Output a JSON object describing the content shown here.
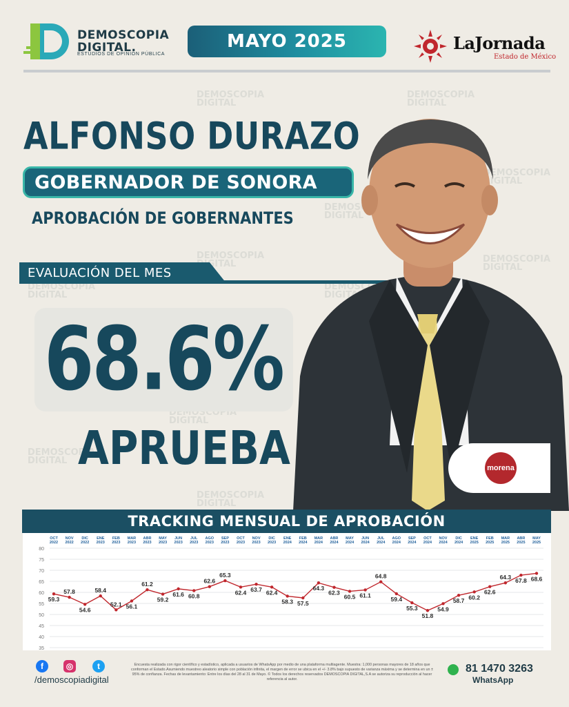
{
  "header": {
    "brand_name_1": "DEMOSCOPIA",
    "brand_name_2": "DIGITAL.",
    "brand_tagline": "ESTUDIOS DE OPINIÓN PÚBLICA",
    "month": "MAYO 2025",
    "newspaper": "LaJornada",
    "newspaper_sub": "Estado de México"
  },
  "title": {
    "name": "ALFONSO DURAZO",
    "role": "GOBERNADOR DE SONORA",
    "subtitle": "APROBACIÓN DE GOBERNANTES"
  },
  "evaluation": {
    "tab_label": "EVALUACIÓN DEL MES",
    "value": "68.6%",
    "label": "APRUEBA"
  },
  "party": {
    "name": "morena",
    "color": "#b3282d"
  },
  "colors": {
    "primary": "#17485c",
    "accent": "#2bb5b0",
    "line": "#c0272d"
  },
  "watermark": [
    "DEMOSCOPIA",
    "DIGITAL"
  ],
  "chart_data": {
    "type": "line",
    "title": "TRACKING MENSUAL DE APROBACIÓN",
    "categories": [
      [
        "OCT",
        "2022"
      ],
      [
        "NOV",
        "2022"
      ],
      [
        "DIC",
        "2022"
      ],
      [
        "ENE",
        "2023"
      ],
      [
        "FEB",
        "2023"
      ],
      [
        "MAR",
        "2023"
      ],
      [
        "ABR",
        "2023"
      ],
      [
        "MAY",
        "2023"
      ],
      [
        "JUN",
        "2023"
      ],
      [
        "JUL",
        "2023"
      ],
      [
        "AGO",
        "2023"
      ],
      [
        "SEP",
        "2023"
      ],
      [
        "OCT",
        "2023"
      ],
      [
        "NOV",
        "2023"
      ],
      [
        "DIC",
        "2023"
      ],
      [
        "ENE",
        "2024"
      ],
      [
        "FEB",
        "2024"
      ],
      [
        "MAR",
        "2024"
      ],
      [
        "ABR",
        "2024"
      ],
      [
        "MAY",
        "2024"
      ],
      [
        "JUN",
        "2024"
      ],
      [
        "JUL",
        "2024"
      ],
      [
        "AGO",
        "2024"
      ],
      [
        "SEP",
        "2024"
      ],
      [
        "OCT",
        "2024"
      ],
      [
        "NOV",
        "2024"
      ],
      [
        "DIC",
        "2024"
      ],
      [
        "ENE",
        "2025"
      ],
      [
        "FEB",
        "2025"
      ],
      [
        "MAR",
        "2025"
      ],
      [
        "ABR",
        "2025"
      ],
      [
        "MAY",
        "2025"
      ]
    ],
    "values": [
      59.3,
      57.8,
      54.6,
      58.4,
      52.1,
      56.1,
      61.2,
      59.2,
      61.6,
      60.8,
      62.6,
      65.3,
      62.4,
      63.7,
      62.4,
      58.3,
      57.5,
      64.3,
      62.3,
      60.5,
      61.1,
      64.8,
      59.4,
      55.3,
      51.8,
      54.9,
      58.7,
      60.2,
      62.6,
      64.3,
      67.8,
      68.6
    ],
    "label_position": [
      "below",
      "above",
      "below",
      "above",
      "above",
      "below",
      "above",
      "below",
      "below",
      "below",
      "above",
      "above",
      "below",
      "below",
      "below",
      "below",
      "below",
      "below",
      "below",
      "below",
      "below",
      "above",
      "below",
      "below",
      "below",
      "below",
      "below",
      "below",
      "below",
      "above",
      "below",
      "below"
    ],
    "yticks": [
      35,
      40,
      45,
      50,
      55,
      60,
      65,
      70,
      75,
      80
    ],
    "ylim": [
      35,
      80
    ],
    "grid": true
  },
  "footer": {
    "handle": "/demoscopiadigital",
    "social": [
      "facebook-icon",
      "instagram-icon",
      "twitter-icon"
    ],
    "disclaimer": "Encuesta realizada con rigor científico y estadístico, aplicada a usuarios de WhatsApp por medio de una plataforma multiagente. Muestra: 1,000 personas mayores de 18 años que conforman el Estado.Asumiendo muestreo aleatorio simple con población infinita, el margen de error se ubica en el +/- 3.8% bajo supuesto de varianza máxima y se determina en un ± 95% de confianza. Fechas de levantamiento: Entre los días del 28 al 31 de Mayo. © Todos los derechos reservados DEMOSCOPIA DIGITAL,S.A se autoriza su reproducción al hacer referencia al autor.",
    "phone": "81 1470 3263",
    "whatsapp_label": "WhatsApp"
  }
}
